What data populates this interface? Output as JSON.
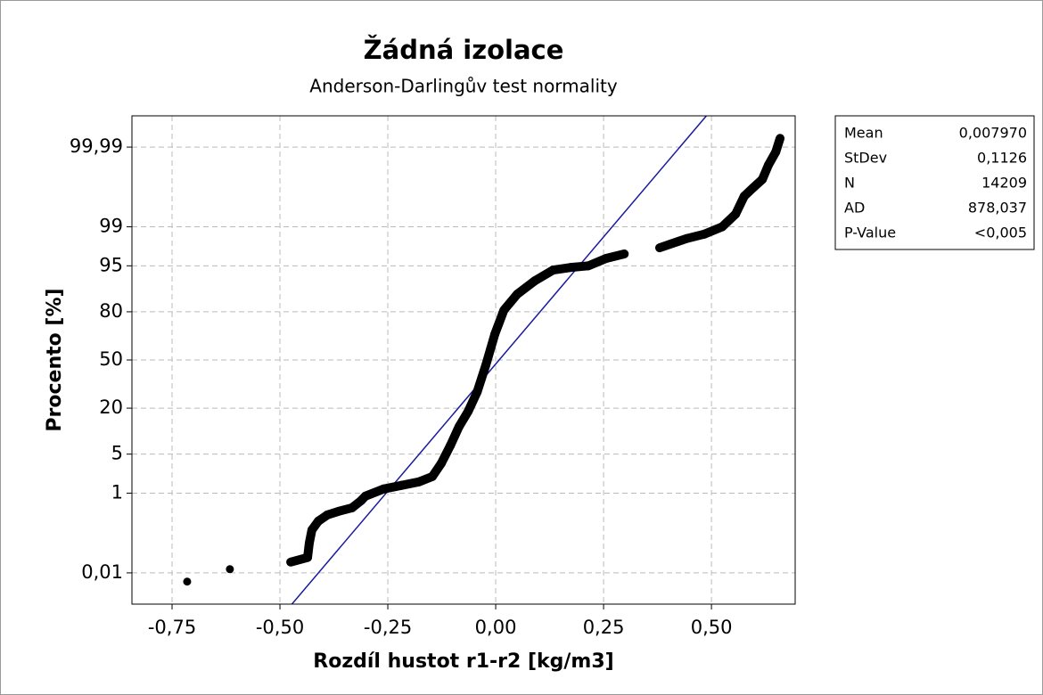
{
  "chart_data": {
    "type": "probability",
    "title": "Žádná izolace",
    "subtitle": "Anderson-Darlingův test normality",
    "x_label": "Rozdíl hustot r1-r2 [kg/m3]",
    "y_label": "Procento [%]",
    "y_scale": "probability",
    "grid": true,
    "legend_position": "right",
    "series": [
      {
        "color": "#000000",
        "line_color": "#1a1aa0",
        "x": [
          -0.715,
          -0.616,
          -0.475,
          -0.436,
          -0.432,
          -0.426,
          -0.411,
          -0.39,
          -0.364,
          -0.333,
          -0.312,
          -0.302,
          -0.26,
          -0.219,
          -0.178,
          -0.147,
          -0.126,
          -0.105,
          -0.085,
          -0.064,
          -0.043,
          -0.023,
          -0.002,
          0.019,
          0.05,
          0.091,
          0.133,
          0.174,
          0.215,
          0.256,
          0.298,
          0.38,
          0.442,
          0.483,
          0.525,
          0.556,
          0.576,
          0.597,
          0.618,
          0.632,
          0.649,
          0.659
        ],
        "values": [
          0.0054,
          0.0129,
          0.0208,
          0.028,
          0.069,
          0.149,
          0.244,
          0.34,
          0.41,
          0.49,
          0.7,
          0.87,
          1.21,
          1.42,
          1.66,
          2.08,
          3.56,
          6.77,
          12.2,
          18.4,
          28.8,
          46.3,
          67.4,
          80.8,
          87.5,
          91.7,
          94.2,
          94.7,
          95.0,
          96.2,
          96.8,
          97.5,
          98.3,
          98.6,
          99.0,
          99.46,
          99.79,
          99.87,
          99.92,
          99.967,
          99.986,
          99.9946
        ]
      }
    ],
    "stats": [
      {
        "name": "Mean",
        "value": 0.00797,
        "label": "0,007970"
      },
      {
        "name": "StDev",
        "value": 0.1126,
        "label": "0,1126"
      },
      {
        "name": "N",
        "value": 14209,
        "label": "14209"
      },
      {
        "name": "AD",
        "value": 878.037,
        "label": "878,037"
      },
      {
        "name": "P-Value",
        "label": "<0,005"
      }
    ],
    "xlim": [
      -0.843,
      0.694
    ],
    "ylim": [
      0.001,
      99.999
    ],
    "xticks": [
      {
        "value": -0.75,
        "label": "-0,75"
      },
      {
        "value": -0.5,
        "label": "-0,50"
      },
      {
        "value": -0.25,
        "label": "-0,25"
      },
      {
        "value": 0,
        "label": "0,00"
      },
      {
        "value": 0.25,
        "label": "0,25"
      },
      {
        "value": 0.5,
        "label": "0,50"
      }
    ],
    "yticks": [
      {
        "value": 0.01,
        "label": "0,01"
      },
      1,
      5,
      20,
      50,
      80,
      95,
      99,
      {
        "value": 99.99,
        "label": "99,99"
      }
    ]
  }
}
